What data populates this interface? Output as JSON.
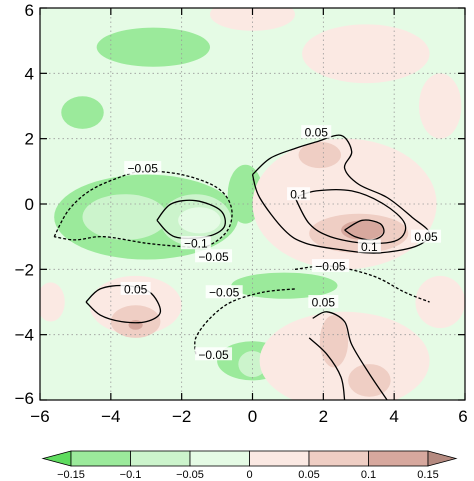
{
  "chart_data": {
    "type": "heatmap",
    "description_free": true,
    "xlim": [
      -6,
      6
    ],
    "ylim": [
      -6,
      6
    ],
    "x_ticks": [
      -6,
      -4,
      -2,
      0,
      2,
      4,
      6
    ],
    "y_ticks": [
      -6,
      -4,
      -2,
      0,
      2,
      4,
      6
    ],
    "x_tick_labels": [
      "−6",
      "−4",
      "−2",
      "0",
      "2",
      "4",
      "6"
    ],
    "y_tick_labels": [
      "−6",
      "−4",
      "−2",
      "0",
      "2",
      "4",
      "6"
    ],
    "grid": true,
    "colorbar": {
      "levels": [
        -0.15,
        -0.1,
        -0.05,
        0,
        0.05,
        0.1,
        0.15
      ],
      "labels": [
        "−0.15",
        "−0.1",
        "−0.05",
        "0",
        "0.05",
        "0.1",
        "0.15"
      ],
      "colors": [
        "#5fdc5f",
        "#9bea9b",
        "#ccf4cc",
        "#e5fbe5",
        "#fbe9e3",
        "#efcec4",
        "#d7a89e",
        "#b58a80"
      ]
    },
    "contour_labels": [
      {
        "text": "0.05",
        "x": 1.8,
        "y": 2.2
      },
      {
        "text": "−0.05",
        "x": -3.1,
        "y": 1.1
      },
      {
        "text": "0.1",
        "x": 1.3,
        "y": 0.3
      },
      {
        "text": "−0.1",
        "x": -1.6,
        "y": -1.2
      },
      {
        "text": "−0.05",
        "x": -1.1,
        "y": -1.6
      },
      {
        "text": "0.1",
        "x": 3.3,
        "y": -1.3
      },
      {
        "text": "0.05",
        "x": 4.9,
        "y": -1.0
      },
      {
        "text": "−0.05",
        "x": 2.2,
        "y": -1.9
      },
      {
        "text": "0.05",
        "x": -3.3,
        "y": -2.6
      },
      {
        "text": "−0.05",
        "x": -0.8,
        "y": -2.7
      },
      {
        "text": "0.05",
        "x": 2.0,
        "y": -3.0
      },
      {
        "text": "−0.05",
        "x": -1.1,
        "y": -4.6
      }
    ],
    "contours": [
      {
        "level": 0.05,
        "dashed": false,
        "points": [
          [
            0.0,
            0.9
          ],
          [
            0.5,
            1.4
          ],
          [
            1.2,
            1.7
          ],
          [
            1.8,
            1.9
          ],
          [
            2.5,
            2.1
          ],
          [
            2.8,
            1.6
          ],
          [
            2.6,
            1.1
          ],
          [
            3.0,
            0.6
          ],
          [
            3.8,
            0.2
          ],
          [
            4.5,
            -0.4
          ],
          [
            5.0,
            -0.9
          ],
          [
            4.6,
            -1.3
          ],
          [
            3.5,
            -1.5
          ],
          [
            2.5,
            -1.4
          ],
          [
            1.5,
            -1.2
          ],
          [
            0.9,
            -0.8
          ],
          [
            0.2,
            0.2
          ],
          [
            0.0,
            0.9
          ]
        ]
      },
      {
        "level": 0.1,
        "dashed": false,
        "points": [
          [
            1.2,
            0.2
          ],
          [
            1.8,
            0.4
          ],
          [
            2.8,
            0.4
          ],
          [
            3.7,
            0.0
          ],
          [
            4.3,
            -0.6
          ],
          [
            4.1,
            -1.1
          ],
          [
            3.2,
            -1.2
          ],
          [
            2.2,
            -1.0
          ],
          [
            1.6,
            -0.6
          ],
          [
            1.2,
            0.2
          ]
        ]
      },
      {
        "level": 0.1,
        "dashed": false,
        "points": [
          [
            2.6,
            -0.8
          ],
          [
            3.1,
            -0.5
          ],
          [
            3.6,
            -0.6
          ],
          [
            3.7,
            -0.9
          ],
          [
            3.4,
            -1.1
          ],
          [
            2.9,
            -1.0
          ],
          [
            2.6,
            -0.8
          ]
        ]
      },
      {
        "level": -0.05,
        "dashed": true,
        "points": [
          [
            -5.6,
            -1.0
          ],
          [
            -5.2,
            -0.2
          ],
          [
            -4.6,
            0.4
          ],
          [
            -3.8,
            0.8
          ],
          [
            -3.1,
            1.0
          ],
          [
            -2.0,
            0.9
          ],
          [
            -1.0,
            0.5
          ],
          [
            -0.6,
            -0.1
          ],
          [
            -0.7,
            -0.8
          ],
          [
            -1.3,
            -1.3
          ],
          [
            -2.0,
            -1.3
          ],
          [
            -3.0,
            -1.2
          ],
          [
            -4.2,
            -1.0
          ],
          [
            -5.0,
            -1.1
          ],
          [
            -5.6,
            -1.0
          ]
        ]
      },
      {
        "level": -0.1,
        "dashed": false,
        "points": [
          [
            -2.7,
            -0.5
          ],
          [
            -2.3,
            0.0
          ],
          [
            -1.6,
            0.1
          ],
          [
            -0.9,
            -0.2
          ],
          [
            -0.8,
            -0.7
          ],
          [
            -1.3,
            -1.0
          ],
          [
            -2.2,
            -1.0
          ],
          [
            -2.7,
            -0.5
          ]
        ]
      },
      {
        "level": 0.05,
        "dashed": false,
        "points": [
          [
            -4.7,
            -3.0
          ],
          [
            -4.3,
            -2.6
          ],
          [
            -3.6,
            -2.5
          ],
          [
            -2.9,
            -2.7
          ],
          [
            -2.6,
            -3.3
          ],
          [
            -3.0,
            -3.6
          ],
          [
            -3.7,
            -3.6
          ],
          [
            -4.3,
            -3.4
          ],
          [
            -4.7,
            -3.0
          ]
        ]
      },
      {
        "level": -0.05,
        "dashed": true,
        "points": [
          [
            -1.6,
            -4.6
          ],
          [
            -1.6,
            -4.1
          ],
          [
            -1.2,
            -3.5
          ],
          [
            -0.6,
            -3.0
          ],
          [
            0.3,
            -2.7
          ],
          [
            1.2,
            -2.6
          ]
        ]
      },
      {
        "level": -0.05,
        "dashed": true,
        "points": [
          [
            1.2,
            -2.0
          ],
          [
            2.2,
            -1.9
          ],
          [
            3.4,
            -2.2
          ],
          [
            4.3,
            -2.7
          ],
          [
            5.0,
            -3.0
          ]
        ]
      },
      {
        "level": 0.05,
        "dashed": false,
        "points": [
          [
            1.7,
            -3.5
          ],
          [
            2.1,
            -3.3
          ],
          [
            2.6,
            -3.6
          ],
          [
            2.8,
            -4.3
          ],
          [
            3.3,
            -5.2
          ],
          [
            3.8,
            -6.0
          ]
        ]
      },
      {
        "level": 0.05,
        "dashed": false,
        "points": [
          [
            1.6,
            -4.1
          ],
          [
            2.1,
            -4.6
          ],
          [
            2.5,
            -5.3
          ],
          [
            2.6,
            -6.0
          ]
        ]
      }
    ],
    "shaded_blobs": [
      {
        "cls": 1,
        "cx": -2.8,
        "cy": 4.8,
        "rx": 1.6,
        "ry": 0.6
      },
      {
        "cls": 1,
        "cx": -4.8,
        "cy": 2.8,
        "rx": 0.6,
        "ry": 0.5
      },
      {
        "cls": 1,
        "cx": -3.0,
        "cy": -0.4,
        "rx": 2.6,
        "ry": 1.3
      },
      {
        "cls": 2,
        "cx": -3.6,
        "cy": -0.4,
        "rx": 1.2,
        "ry": 0.7
      },
      {
        "cls": 2,
        "cx": -1.6,
        "cy": -0.5,
        "rx": 1.0,
        "ry": 0.8
      },
      {
        "cls": 3,
        "cx": -1.5,
        "cy": -0.5,
        "rx": 0.6,
        "ry": 0.4
      },
      {
        "cls": 1,
        "cx": 0.0,
        "cy": -4.8,
        "rx": 1.0,
        "ry": 0.6
      },
      {
        "cls": 2,
        "cx": 0.0,
        "cy": -4.9,
        "rx": 0.4,
        "ry": 0.4
      },
      {
        "cls": 1,
        "cx": -0.2,
        "cy": 0.3,
        "rx": 0.5,
        "ry": 0.9
      },
      {
        "cls": 1,
        "cx": 0.9,
        "cy": -2.5,
        "rx": 1.5,
        "ry": 0.4
      },
      {
        "cls": 4,
        "cx": 0.0,
        "cy": 5.8,
        "rx": 1.2,
        "ry": 0.5
      },
      {
        "cls": 4,
        "cx": 3.2,
        "cy": 4.6,
        "rx": 1.8,
        "ry": 0.9
      },
      {
        "cls": 4,
        "cx": 5.3,
        "cy": 3.0,
        "rx": 0.6,
        "ry": 1.0
      },
      {
        "cls": 4,
        "cx": 2.6,
        "cy": 0.0,
        "rx": 2.6,
        "ry": 2.0
      },
      {
        "cls": 5,
        "cx": 1.9,
        "cy": 1.5,
        "rx": 0.6,
        "ry": 0.4
      },
      {
        "cls": 5,
        "cx": 3.0,
        "cy": -0.9,
        "rx": 1.4,
        "ry": 0.6
      },
      {
        "cls": 6,
        "cx": 3.1,
        "cy": -0.8,
        "rx": 0.6,
        "ry": 0.3
      },
      {
        "cls": 4,
        "cx": -3.3,
        "cy": -3.1,
        "rx": 1.3,
        "ry": 0.9
      },
      {
        "cls": 5,
        "cx": -3.3,
        "cy": -3.6,
        "rx": 0.7,
        "ry": 0.5
      },
      {
        "cls": 6,
        "cx": -3.3,
        "cy": -3.7,
        "rx": 0.2,
        "ry": 0.15
      },
      {
        "cls": 4,
        "cx": 2.6,
        "cy": -4.8,
        "rx": 2.4,
        "ry": 1.5
      },
      {
        "cls": 5,
        "cx": 2.3,
        "cy": -4.2,
        "rx": 0.4,
        "ry": 0.8
      },
      {
        "cls": 5,
        "cx": 3.3,
        "cy": -5.4,
        "rx": 0.6,
        "ry": 0.5
      },
      {
        "cls": 4,
        "cx": 5.3,
        "cy": -3.0,
        "rx": 0.7,
        "ry": 0.8
      },
      {
        "cls": 4,
        "cx": -5.7,
        "cy": -3.0,
        "rx": 0.4,
        "ry": 0.6
      }
    ]
  }
}
